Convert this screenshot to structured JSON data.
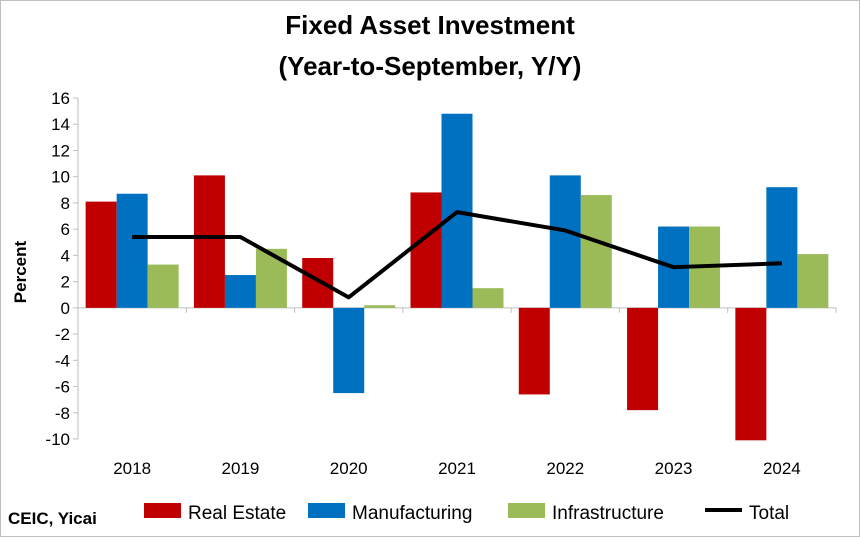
{
  "chart_data": {
    "type": "bar",
    "title_lines": [
      "Fixed Asset Investment",
      "(Year-to-September, Y/Y)"
    ],
    "xlabel": "",
    "ylabel": "Percent",
    "ylim": [
      -10,
      16
    ],
    "yticks": [
      16,
      14,
      12,
      10,
      8,
      6,
      4,
      2,
      0,
      -2,
      -4,
      -6,
      -8,
      -10
    ],
    "categories": [
      "2018",
      "2019",
      "2020",
      "2021",
      "2022",
      "2023",
      "2024"
    ],
    "grid": false,
    "legend_position": "bottom",
    "series": [
      {
        "name": "Real Estate",
        "kind": "bar",
        "color": "#c00000",
        "values": [
          8.1,
          10.1,
          3.8,
          8.8,
          -6.6,
          -7.8,
          -10.1
        ]
      },
      {
        "name": "Manufacturing",
        "kind": "bar",
        "color": "#0070c0",
        "values": [
          8.7,
          2.5,
          -6.5,
          14.8,
          10.1,
          6.2,
          9.2
        ]
      },
      {
        "name": "Infrastructure",
        "kind": "bar",
        "color": "#9bbb59",
        "values": [
          3.3,
          4.5,
          0.2,
          1.5,
          8.6,
          6.2,
          4.1
        ]
      },
      {
        "name": "Total",
        "kind": "line",
        "color": "#000000",
        "values": [
          5.4,
          5.4,
          0.8,
          7.3,
          5.9,
          3.1,
          3.4
        ]
      }
    ],
    "source": "CEIC, Yicai"
  }
}
